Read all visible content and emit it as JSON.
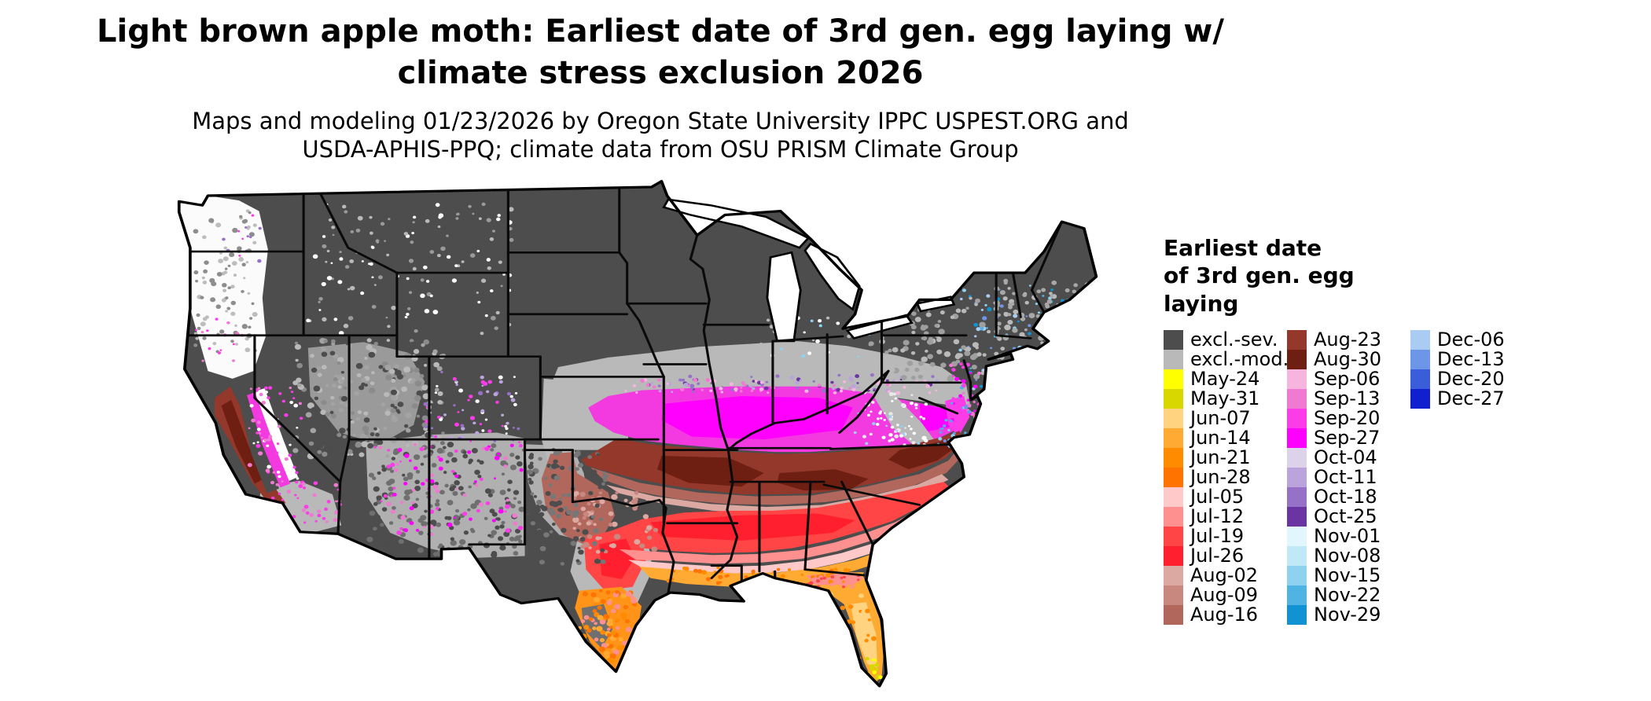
{
  "header": {
    "title_line1": "Light brown apple moth: Earliest date of 3rd gen. egg laying w/",
    "title_line2": "climate stress exclusion 2026",
    "subtitle_line1": "Maps and modeling 01/23/2026 by Oregon State University IPPC USPEST.ORG and",
    "subtitle_line2": "USDA-APHIS-PPQ; climate data from OSU PRISM Climate Group"
  },
  "map": {
    "name": "us-choropleth-map",
    "description": "Continental United States raster map of earliest date of 3rd generation egg laying with climate stress exclusion",
    "border_color": "#000000",
    "background_color": "#ffffff"
  },
  "legend": {
    "title_lines": [
      "Earliest date",
      "of 3rd gen. egg",
      "laying"
    ],
    "columns": [
      [
        {
          "label": "excl.-sev.",
          "color": "#4d4d4d"
        },
        {
          "label": "excl.-mod.",
          "color": "#b9b9b9"
        },
        {
          "label": "May-24",
          "color": "#ffff00"
        },
        {
          "label": "May-31",
          "color": "#d8d800"
        },
        {
          "label": "Jun-07",
          "color": "#ffd37f"
        },
        {
          "label": "Jun-14",
          "color": "#ffaa33"
        },
        {
          "label": "Jun-21",
          "color": "#ff8c00"
        },
        {
          "label": "Jun-28",
          "color": "#ff7400"
        },
        {
          "label": "Jul-05",
          "color": "#ffc9c9"
        },
        {
          "label": "Jul-12",
          "color": "#ff9090"
        },
        {
          "label": "Jul-19",
          "color": "#ff4545"
        },
        {
          "label": "Jul-26",
          "color": "#ff1f2f"
        },
        {
          "label": "Aug-02",
          "color": "#dba8a2"
        },
        {
          "label": "Aug-09",
          "color": "#c88880"
        },
        {
          "label": "Aug-16",
          "color": "#b2675c"
        }
      ],
      [
        {
          "label": "Aug-23",
          "color": "#93382b"
        },
        {
          "label": "Aug-30",
          "color": "#6f1f12"
        },
        {
          "label": "Sep-06",
          "color": "#f5b5de"
        },
        {
          "label": "Sep-13",
          "color": "#f07ad2"
        },
        {
          "label": "Sep-20",
          "color": "#fb3ce8"
        },
        {
          "label": "Sep-27",
          "color": "#ff00ff"
        },
        {
          "label": "Oct-04",
          "color": "#dcd3ea"
        },
        {
          "label": "Oct-11",
          "color": "#bba4dc"
        },
        {
          "label": "Oct-18",
          "color": "#9770c8"
        },
        {
          "label": "Oct-25",
          "color": "#6a35a2"
        },
        {
          "label": "Nov-01",
          "color": "#e2f6fd"
        },
        {
          "label": "Nov-08",
          "color": "#bfe9f7"
        },
        {
          "label": "Nov-15",
          "color": "#8ed2f0"
        },
        {
          "label": "Nov-22",
          "color": "#4fb3e4"
        },
        {
          "label": "Nov-29",
          "color": "#1192d2"
        }
      ],
      [
        {
          "label": "Dec-06",
          "color": "#aacbf2"
        },
        {
          "label": "Dec-13",
          "color": "#6e96e8"
        },
        {
          "label": "Dec-20",
          "color": "#3a5ed9"
        },
        {
          "label": "Dec-27",
          "color": "#1020cf"
        }
      ]
    ]
  }
}
